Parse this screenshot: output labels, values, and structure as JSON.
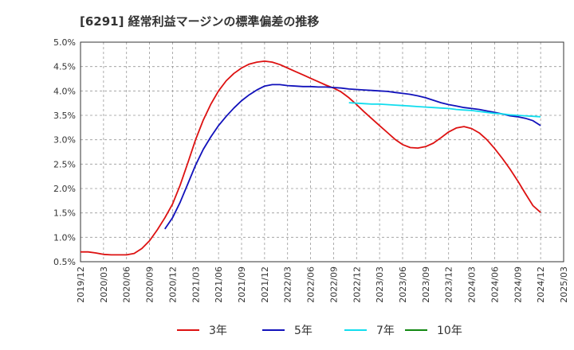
{
  "chart_data": {
    "type": "line",
    "title": "[6291]  経常利益マージンの標準偏差の推移",
    "xlabel": "",
    "ylabel": "",
    "ylim": [
      0.5,
      5.0
    ],
    "yticks": [
      "0.5%",
      "1.0%",
      "1.5%",
      "2.0%",
      "2.5%",
      "3.0%",
      "3.5%",
      "4.0%",
      "4.5%",
      "5.0%"
    ],
    "ytick_values": [
      0.5,
      1.0,
      1.5,
      2.0,
      2.5,
      3.0,
      3.5,
      4.0,
      4.5,
      5.0
    ],
    "xticks": [
      "2019/12",
      "2020/03",
      "2020/06",
      "2020/09",
      "2020/12",
      "2021/03",
      "2021/06",
      "2021/09",
      "2021/12",
      "2022/03",
      "2022/06",
      "2022/09",
      "2022/12",
      "2023/03",
      "2023/06",
      "2023/09",
      "2023/12",
      "2024/03",
      "2024/06",
      "2024/09",
      "2024/12",
      "2025/03"
    ],
    "grid": true,
    "legend_position": "bottom",
    "series": [
      {
        "name": "3年",
        "color": "#dd1111",
        "x": [
          "2019/12",
          "2020/01",
          "2020/02",
          "2020/03",
          "2020/04",
          "2020/05",
          "2020/06",
          "2020/07",
          "2020/08",
          "2020/09",
          "2020/10",
          "2020/11",
          "2020/12",
          "2021/01",
          "2021/02",
          "2021/03",
          "2021/04",
          "2021/05",
          "2021/06",
          "2021/07",
          "2021/08",
          "2021/09",
          "2021/10",
          "2021/11",
          "2021/12",
          "2022/01",
          "2022/02",
          "2022/03",
          "2022/04",
          "2022/05",
          "2022/06",
          "2022/07",
          "2022/08",
          "2022/09",
          "2022/10",
          "2022/11",
          "2022/12",
          "2023/01",
          "2023/02",
          "2023/03",
          "2023/04",
          "2023/05",
          "2023/06",
          "2023/07",
          "2023/08",
          "2023/09",
          "2023/10",
          "2023/11",
          "2023/12",
          "2024/01",
          "2024/02",
          "2024/03",
          "2024/04",
          "2024/05",
          "2024/06",
          "2024/07",
          "2024/08",
          "2024/09",
          "2024/10",
          "2024/11",
          "2024/12"
        ],
        "values": [
          0.7,
          0.7,
          0.68,
          0.65,
          0.64,
          0.64,
          0.64,
          0.67,
          0.77,
          0.93,
          1.15,
          1.4,
          1.68,
          2.07,
          2.53,
          3.0,
          3.4,
          3.73,
          4.0,
          4.21,
          4.36,
          4.47,
          4.55,
          4.59,
          4.61,
          4.59,
          4.54,
          4.47,
          4.4,
          4.33,
          4.26,
          4.19,
          4.12,
          4.06,
          3.98,
          3.86,
          3.72,
          3.57,
          3.43,
          3.29,
          3.15,
          3.01,
          2.9,
          2.84,
          2.83,
          2.86,
          2.93,
          3.04,
          3.16,
          3.24,
          3.27,
          3.23,
          3.14,
          3.0,
          2.82,
          2.62,
          2.4,
          2.16,
          1.9,
          1.65,
          1.51
        ]
      },
      {
        "name": "5年",
        "color": "#1111bb",
        "x": [
          "2020/11",
          "2020/12",
          "2021/01",
          "2021/02",
          "2021/03",
          "2021/04",
          "2021/05",
          "2021/06",
          "2021/07",
          "2021/08",
          "2021/09",
          "2021/10",
          "2021/11",
          "2021/12",
          "2022/01",
          "2022/02",
          "2022/03",
          "2022/04",
          "2022/05",
          "2022/06",
          "2022/07",
          "2022/08",
          "2022/09",
          "2022/10",
          "2022/11",
          "2022/12",
          "2023/01",
          "2023/02",
          "2023/03",
          "2023/04",
          "2023/05",
          "2023/06",
          "2023/07",
          "2023/08",
          "2023/09",
          "2023/10",
          "2023/11",
          "2023/12",
          "2024/01",
          "2024/02",
          "2024/03",
          "2024/04",
          "2024/05",
          "2024/06",
          "2024/07",
          "2024/08",
          "2024/09",
          "2024/10",
          "2024/11",
          "2024/12"
        ],
        "values": [
          1.17,
          1.4,
          1.72,
          2.1,
          2.48,
          2.8,
          3.06,
          3.29,
          3.48,
          3.65,
          3.8,
          3.92,
          4.02,
          4.1,
          4.13,
          4.13,
          4.11,
          4.1,
          4.09,
          4.09,
          4.08,
          4.08,
          4.07,
          4.06,
          4.04,
          4.03,
          4.02,
          4.01,
          4.0,
          3.99,
          3.97,
          3.95,
          3.93,
          3.9,
          3.86,
          3.81,
          3.76,
          3.72,
          3.69,
          3.66,
          3.64,
          3.62,
          3.59,
          3.56,
          3.53,
          3.49,
          3.47,
          3.44,
          3.39,
          3.29
        ]
      },
      {
        "name": "7年",
        "color": "#11ddee",
        "x": [
          "2022/11",
          "2022/12",
          "2023/01",
          "2023/02",
          "2023/03",
          "2023/04",
          "2023/05",
          "2023/06",
          "2023/07",
          "2023/08",
          "2023/09",
          "2023/10",
          "2023/11",
          "2023/12",
          "2024/01",
          "2024/02",
          "2024/03",
          "2024/04",
          "2024/05",
          "2024/06",
          "2024/07",
          "2024/08",
          "2024/09",
          "2024/10",
          "2024/11",
          "2024/12"
        ],
        "values": [
          3.76,
          3.75,
          3.74,
          3.73,
          3.73,
          3.72,
          3.71,
          3.7,
          3.69,
          3.68,
          3.67,
          3.66,
          3.65,
          3.64,
          3.62,
          3.61,
          3.6,
          3.58,
          3.56,
          3.54,
          3.53,
          3.51,
          3.5,
          3.49,
          3.48,
          3.47
        ]
      },
      {
        "name": "10年",
        "color": "#118811",
        "x": [],
        "values": []
      }
    ]
  }
}
